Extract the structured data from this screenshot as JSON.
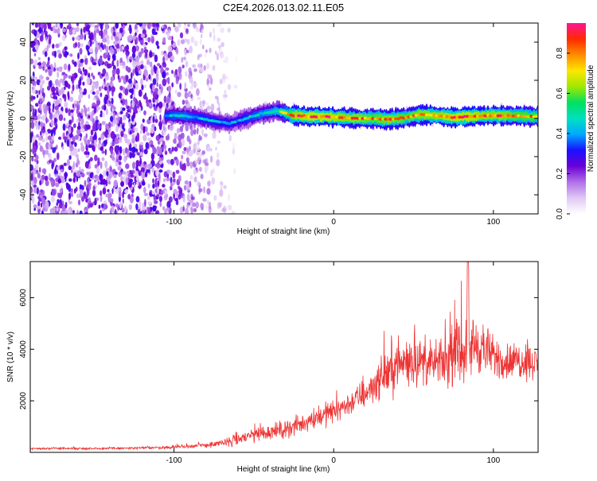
{
  "title": "C2E4.2026.013.02.11.E05",
  "chart_data": [
    {
      "type": "heatmap",
      "xlabel": "Height of straight line (km)",
      "ylabel": "Frequency (Hz)",
      "xlim": [
        -190,
        128
      ],
      "ylim": [
        -50,
        50
      ],
      "xticks": [
        -100,
        0,
        100
      ],
      "yticks": [
        -40,
        -20,
        0,
        20,
        40
      ],
      "xtick_labels": [
        "-100",
        "0",
        "100"
      ],
      "ytick_labels": [
        "-40",
        "-20",
        "0",
        "20",
        "40"
      ],
      "colorbar": {
        "label": "Normalized spectral amplitude",
        "range": [
          0,
          0.95
        ],
        "ticks": [
          0.0,
          0.2,
          0.4,
          0.6,
          0.8
        ],
        "tick_labels": [
          "0.0",
          "0.2",
          "0.4",
          "0.6",
          "0.8"
        ],
        "colormap": [
          "#ffffff",
          "#e0c8f4",
          "#b070e8",
          "#6a00d8",
          "#1a10ff",
          "#00a8ff",
          "#00e0c0",
          "#00e060",
          "#a0e800",
          "#ffe600",
          "#ff8c00",
          "#ff2a00",
          "#ff1493"
        ]
      },
      "ridge": {
        "x": [
          -105,
          -95,
          -85,
          -75,
          -65,
          -55,
          -45,
          -35,
          -25,
          -15,
          -5,
          5,
          15,
          25,
          35,
          45,
          55,
          65,
          75,
          85,
          95,
          105,
          115,
          125
        ],
        "freq": [
          1.5,
          1.5,
          0.5,
          -1.5,
          -2.5,
          0,
          2.5,
          4,
          1.5,
          1,
          1,
          0.5,
          0,
          0,
          -0.5,
          0.5,
          2,
          1.5,
          0.5,
          1,
          1.5,
          1.5,
          1.5,
          1
        ],
        "amplitude": [
          0.45,
          0.5,
          0.45,
          0.45,
          0.4,
          0.45,
          0.5,
          0.55,
          0.85,
          0.9,
          0.9,
          0.85,
          0.85,
          0.8,
          0.85,
          0.8,
          0.85,
          0.85,
          0.9,
          0.9,
          0.85,
          0.85,
          0.8,
          0.8
        ]
      },
      "noise": {
        "region_x": [
          -190,
          -60
        ],
        "dense_until_x": -105,
        "amplitude": 0.25
      }
    },
    {
      "type": "line",
      "xlabel": "Height of straight line (km)",
      "ylabel": "SNR (10 * v/v)",
      "xlim": [
        -190,
        128
      ],
      "ylim": [
        0,
        7400
      ],
      "xticks": [
        -100,
        0,
        100
      ],
      "yticks": [
        2000,
        4000,
        6000
      ],
      "xtick_labels": [
        "-100",
        "0",
        "100"
      ],
      "ytick_labels": [
        "2000",
        "4000",
        "6000"
      ],
      "color": "#ee3333",
      "envelope": {
        "x": [
          -190,
          -160,
          -130,
          -100,
          -80,
          -70,
          -60,
          -50,
          -40,
          -30,
          -20,
          -10,
          0,
          10,
          20,
          30,
          40,
          50,
          60,
          70,
          80,
          90,
          100,
          110,
          120,
          128
        ],
        "mean": [
          150,
          150,
          160,
          200,
          280,
          350,
          500,
          700,
          800,
          900,
          1100,
          1400,
          1600,
          1900,
          2300,
          2900,
          3400,
          3600,
          3400,
          3500,
          4000,
          4200,
          3700,
          3500,
          3600,
          3400
        ],
        "spread": [
          60,
          60,
          70,
          90,
          150,
          200,
          400,
          500,
          450,
          500,
          550,
          700,
          650,
          700,
          900,
          1100,
          1500,
          1400,
          1200,
          1300,
          2000,
          1700,
          1200,
          1100,
          1100,
          900
        ]
      },
      "peak": {
        "x": 84,
        "y": 7400
      }
    }
  ]
}
